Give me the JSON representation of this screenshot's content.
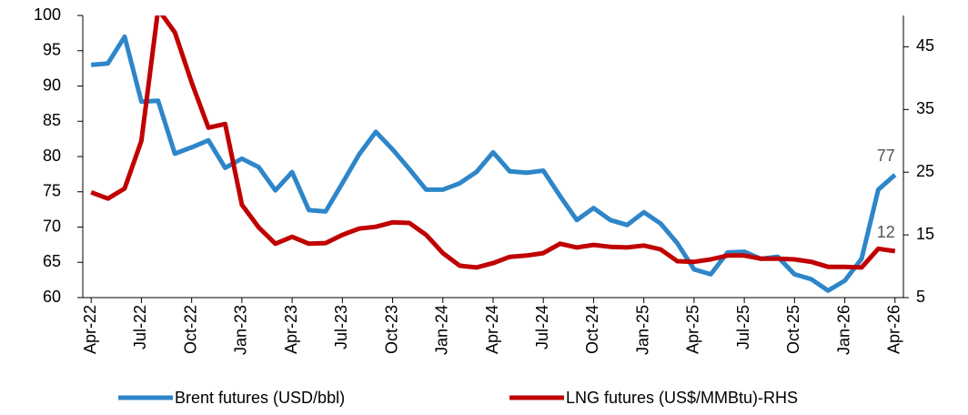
{
  "chart_data": {
    "type": "line",
    "categories": [
      "Apr-22",
      null,
      null,
      "Jul-22",
      null,
      null,
      "Oct-22",
      null,
      null,
      "Jan-23",
      null,
      null,
      "Apr-23",
      null,
      null,
      "Jul-23",
      null,
      null,
      "Oct-23",
      null,
      null,
      "Jan-24",
      null,
      null,
      "Apr-24",
      null,
      null,
      "Jul-24",
      null,
      null,
      "Oct-24",
      null,
      null,
      "Jan-25",
      null,
      null,
      "Apr-25",
      null,
      null,
      "Jul-25",
      null,
      null,
      "Oct-25",
      null,
      null,
      "Jan-26",
      null,
      null,
      "Apr-26"
    ],
    "series": [
      {
        "name": "Brent futures (USD/bbl)",
        "color": "#2e86c9",
        "axis": "y",
        "values": [
          93,
          93.2,
          97,
          87.8,
          87.9,
          80.4,
          81.3,
          82.3,
          78.4,
          79.7,
          78.5,
          75.2,
          77.8,
          72.4,
          72.2,
          76.2,
          80.3,
          83.5,
          81,
          78.2,
          75.3,
          75.3,
          76.2,
          77.8,
          80.6,
          77.9,
          77.7,
          78,
          74.4,
          71,
          72.7,
          71,
          70.3,
          72.1,
          70.5,
          67.7,
          64,
          63.3,
          66.4,
          66.5,
          65.5,
          65.8,
          63.3,
          62.6,
          61,
          62.4,
          65.5,
          75.3,
          77.4
        ],
        "value_labels": [
          null,
          null,
          null,
          null,
          null,
          null,
          null,
          null,
          null,
          null,
          null,
          null,
          null,
          null,
          null,
          null,
          null,
          null,
          null,
          null,
          null,
          null,
          null,
          null,
          null,
          null,
          null,
          null,
          null,
          null,
          null,
          null,
          null,
          null,
          null,
          null,
          null,
          null,
          null,
          null,
          null,
          null,
          null,
          null,
          null,
          null,
          null,
          null,
          "77"
        ]
      },
      {
        "name": "LNG futures (US$/MMBtu)-RHS",
        "color": "#c00000",
        "axis": "y2",
        "values": [
          21.8,
          20.8,
          22.4,
          30,
          51,
          47.3,
          39.3,
          32.1,
          32.7,
          19.8,
          16.2,
          13.6,
          14.7,
          13.6,
          13.7,
          15,
          16,
          16.3,
          17,
          16.9,
          15,
          12.1,
          10.1,
          9.8,
          10.5,
          11.5,
          11.7,
          12.1,
          13.6,
          13,
          13.4,
          13.1,
          13,
          13.3,
          12.7,
          10.8,
          10.7,
          11.1,
          11.7,
          11.7,
          11.2,
          11.2,
          11.1,
          10.7,
          9.9,
          9.9,
          9.8,
          12.8,
          12.4
        ],
        "value_labels": [
          null,
          null,
          null,
          null,
          null,
          null,
          null,
          null,
          null,
          null,
          null,
          null,
          null,
          null,
          null,
          null,
          null,
          null,
          null,
          null,
          null,
          null,
          null,
          null,
          null,
          null,
          null,
          null,
          null,
          null,
          null,
          null,
          null,
          null,
          null,
          null,
          null,
          null,
          null,
          null,
          null,
          null,
          null,
          null,
          null,
          null,
          null,
          null,
          "12"
        ]
      }
    ],
    "ylim": [
      60,
      100
    ],
    "yticks": [
      60,
      65,
      70,
      75,
      80,
      85,
      90,
      95,
      100
    ],
    "y2lim": [
      5,
      50
    ],
    "y2ticks": [
      5,
      15,
      25,
      35,
      45
    ],
    "grid": false,
    "legend": "bottom"
  }
}
